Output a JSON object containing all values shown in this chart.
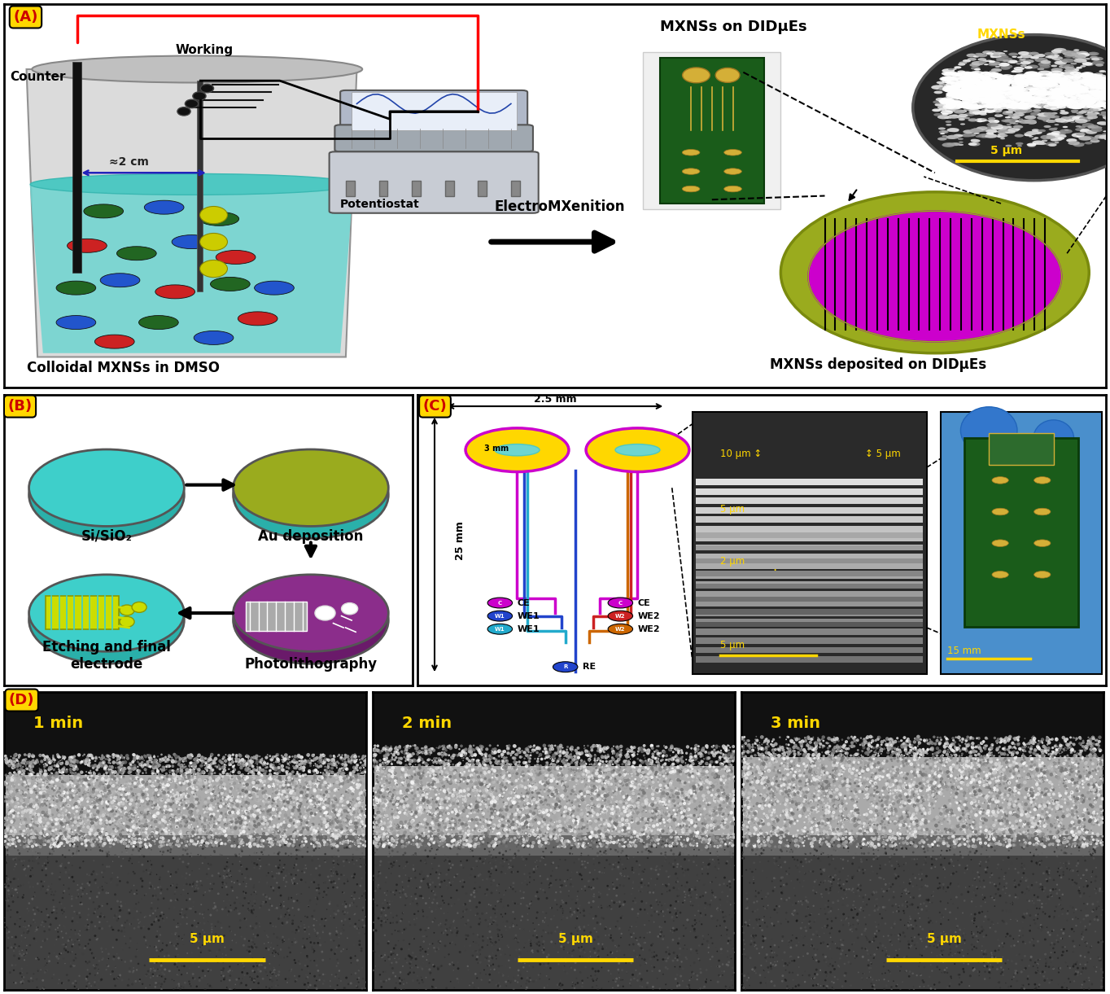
{
  "panel_label_bg": "#FFD700",
  "panel_label_color": "#CC0000",
  "background": "#FFFFFF",
  "panel_D": {
    "labels": [
      "1 min",
      "2 min",
      "3 min"
    ],
    "scalebar": "5 μm",
    "scalebar_color": "#FFD700",
    "label_color": "#FFD700",
    "label_fontsize": 14
  },
  "colors": {
    "teal": "#3ecfca",
    "teal_dark": "#1a9090",
    "olive": "#9aab1e",
    "purple": "#8b2d8b",
    "magenta": "#cc00cc",
    "black": "#000000",
    "red": "#FF0000",
    "dark_gray": "#2a2a2a",
    "light_gray": "#C0C0C0",
    "beaker_teal": "#6dd5d0",
    "blue_ball": "#2255CC",
    "red_ball": "#CC2222",
    "green_ball": "#226622",
    "pcb_green": "#1a5c1a",
    "gold": "#D4AF37"
  }
}
